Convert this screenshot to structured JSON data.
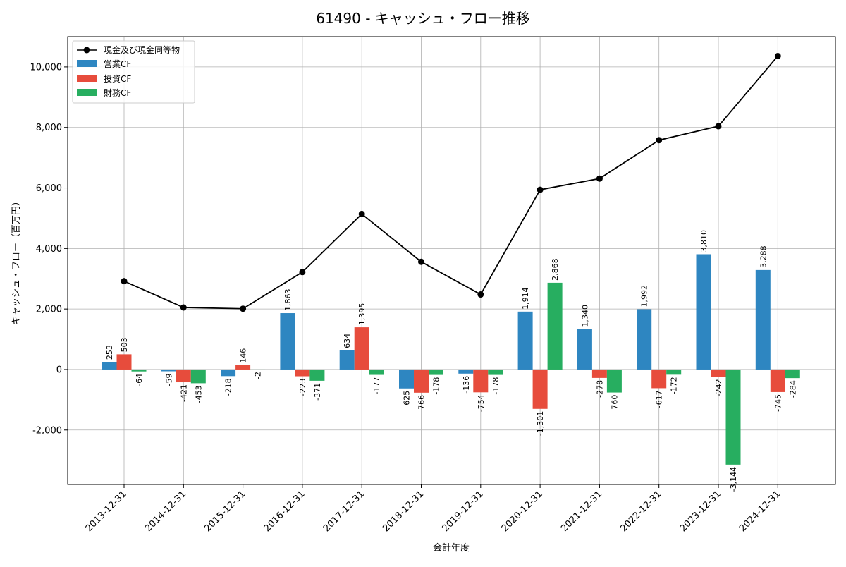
{
  "chart_data": {
    "type": "bar",
    "title": "61490 - キャッシュ・フロー推移",
    "xlabel": "会計年度",
    "ylabel": "キャッシュ・フロー（百万円）",
    "ylim": [
      -3800,
      11000
    ],
    "yticks": [
      -2000,
      0,
      2000,
      4000,
      6000,
      8000,
      10000
    ],
    "ytick_labels": [
      "-2,000",
      "0",
      "2,000",
      "4,000",
      "6,000",
      "8,000",
      "10,000"
    ],
    "grid": true,
    "legend_position": "top-left",
    "categories": [
      "2013-12-31",
      "2014-12-31",
      "2015-12-31",
      "2016-12-31",
      "2017-12-31",
      "2018-12-31",
      "2019-12-31",
      "2020-12-31",
      "2021-12-31",
      "2022-12-31",
      "2023-12-31",
      "2024-12-31"
    ],
    "line_series": {
      "name": "現金及び現金同等物",
      "color": "#000000",
      "values": [
        2920,
        2050,
        2010,
        3220,
        5140,
        3560,
        2480,
        5940,
        6310,
        7580,
        8040,
        10360
      ]
    },
    "series": [
      {
        "name": "営業CF",
        "color": "#2e86c1",
        "values": [
          253,
          -59,
          -218,
          1863,
          634,
          -625,
          -136,
          1914,
          1340,
          1992,
          3810,
          3288
        ],
        "labels": [
          "253",
          "-59",
          "-218",
          "1,863",
          "634",
          "-625",
          "-136",
          "1,914",
          "1,340",
          "1,992",
          "3,810",
          "3,288"
        ]
      },
      {
        "name": "投資CF",
        "color": "#e74c3c",
        "values": [
          503,
          -421,
          146,
          -223,
          1395,
          -766,
          -754,
          -1301,
          -278,
          -617,
          -242,
          -745
        ],
        "labels": [
          "503",
          "-421",
          "146",
          "-223",
          "1,395",
          "-766",
          "-754",
          "-1,301",
          "-278",
          "-617",
          "-242",
          "-745"
        ]
      },
      {
        "name": "財務CF",
        "color": "#27ae60",
        "values": [
          -64,
          -453,
          -2,
          -371,
          -177,
          -178,
          -178,
          2868,
          -760,
          -172,
          -3144,
          -284
        ],
        "labels": [
          "-64",
          "-453",
          "-2",
          "-371",
          "-177",
          "-178",
          "-178",
          "2,868",
          "-760",
          "-172",
          "-3,144",
          "-284"
        ]
      }
    ]
  }
}
